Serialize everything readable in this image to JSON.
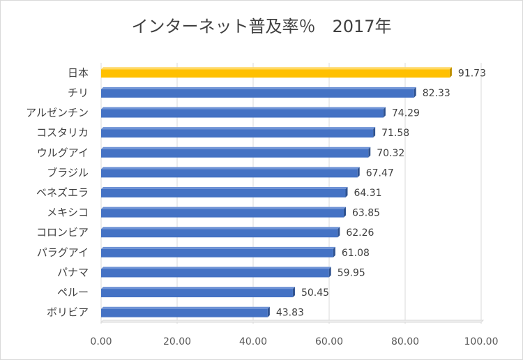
{
  "chart_data": {
    "type": "bar",
    "orientation": "horizontal",
    "title": "インターネット普及率％　2017年",
    "categories": [
      "日本",
      "チリ",
      "アルゼンチン",
      "コスタリカ",
      "ウルグアイ",
      "ブラジル",
      "ベネズエラ",
      "メキシコ",
      "コロンビア",
      "パラグアイ",
      "パナマ",
      "ペルー",
      "ボリビア"
    ],
    "values": [
      91.73,
      82.33,
      74.29,
      71.58,
      70.32,
      67.47,
      64.31,
      63.85,
      62.26,
      61.08,
      59.95,
      50.45,
      43.83
    ],
    "value_labels": [
      "91.73",
      "82.33",
      "74.29",
      "71.58",
      "70.32",
      "67.47",
      "64.31",
      "63.85",
      "62.26",
      "61.08",
      "59.95",
      "50.45",
      "43.83"
    ],
    "xlim": [
      0,
      100
    ],
    "x_ticks": [
      "0.00",
      "20.00",
      "40.00",
      "60.00",
      "80.00",
      "100.00"
    ],
    "x_tick_values": [
      0,
      20,
      40,
      60,
      80,
      100
    ],
    "grid": true,
    "legend": false,
    "highlight_index": 0,
    "colors": {
      "bar": "#4472c4",
      "bar_top": "#6f93d6",
      "bar_side": "#2f528f",
      "highlight": "#ffc000",
      "highlight_top": "#ffd966",
      "highlight_side": "#bf9000",
      "grid": "#d9d9d9"
    }
  }
}
